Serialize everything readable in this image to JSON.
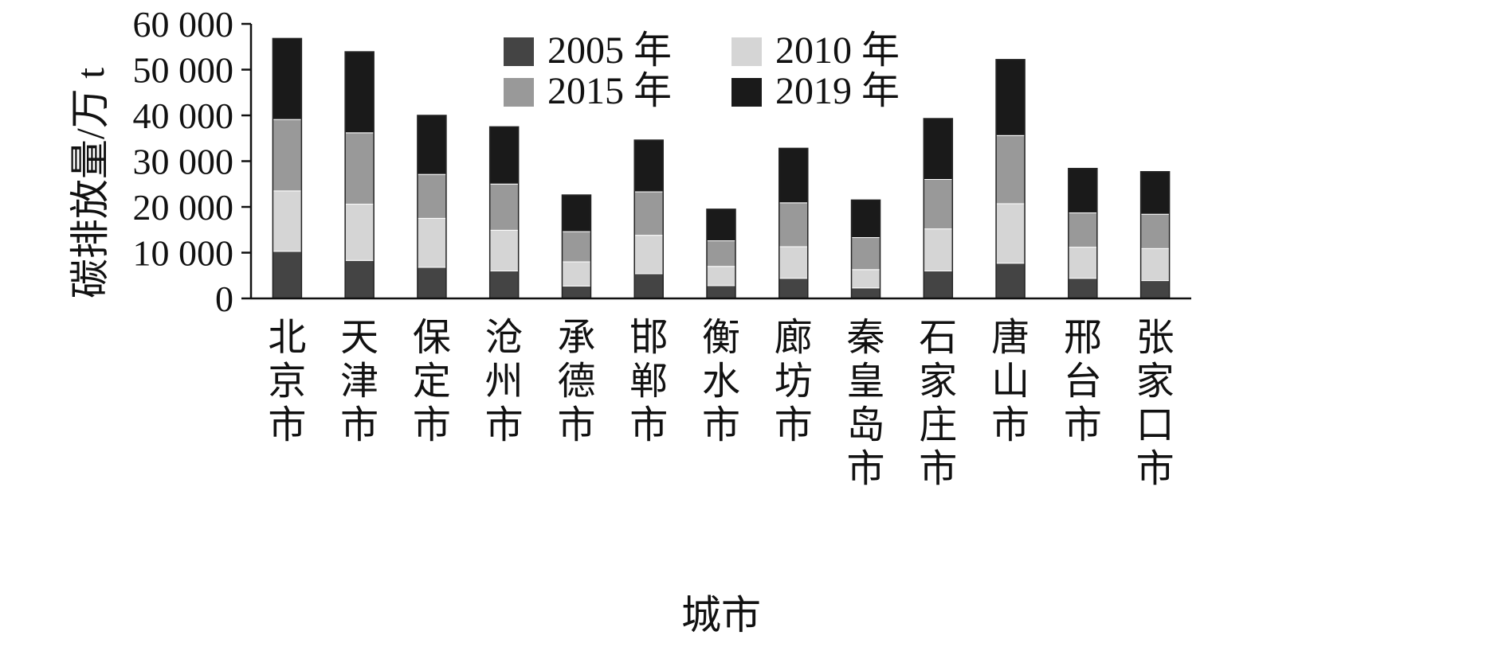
{
  "chart_data": {
    "type": "bar",
    "stacked": true,
    "title": "",
    "xlabel": "城市",
    "ylabel": "碳排放量/万 t",
    "ylim": [
      0,
      60000
    ],
    "yticks": [
      0,
      10000,
      20000,
      30000,
      40000,
      50000,
      60000
    ],
    "ytick_labels": [
      "0",
      "10 000",
      "20 000",
      "30 000",
      "40 000",
      "50 000",
      "60 000"
    ],
    "grid": false,
    "legend_position": "top-center",
    "categories": [
      "北京市",
      "天津市",
      "保定市",
      "沧州市",
      "承德市",
      "邯郸市",
      "衡水市",
      "廊坊市",
      "秦皇岛市",
      "石家庄市",
      "唐山市",
      "邢台市",
      "张家口市"
    ],
    "series": [
      {
        "name": "2005 年",
        "color": "#444444",
        "values": [
          10300,
          8300,
          6800,
          6000,
          2700,
          5400,
          2800,
          4400,
          2300,
          6000,
          7700,
          4400,
          3900
        ]
      },
      {
        "name": "2010 年",
        "color": "#d5d5d5",
        "values": [
          13200,
          12300,
          10700,
          8900,
          5300,
          8400,
          4200,
          6900,
          4000,
          9200,
          13000,
          6800,
          7000
        ]
      },
      {
        "name": "2015 年",
        "color": "#999999",
        "values": [
          15600,
          15600,
          9600,
          10100,
          6600,
          9500,
          5600,
          9600,
          7000,
          10800,
          14900,
          7500,
          7500
        ]
      },
      {
        "name": "2019 年",
        "color": "#1a1a1a",
        "values": [
          17700,
          17700,
          12900,
          12500,
          8000,
          11300,
          6900,
          11900,
          8200,
          13300,
          16600,
          9700,
          9300
        ]
      }
    ]
  }
}
